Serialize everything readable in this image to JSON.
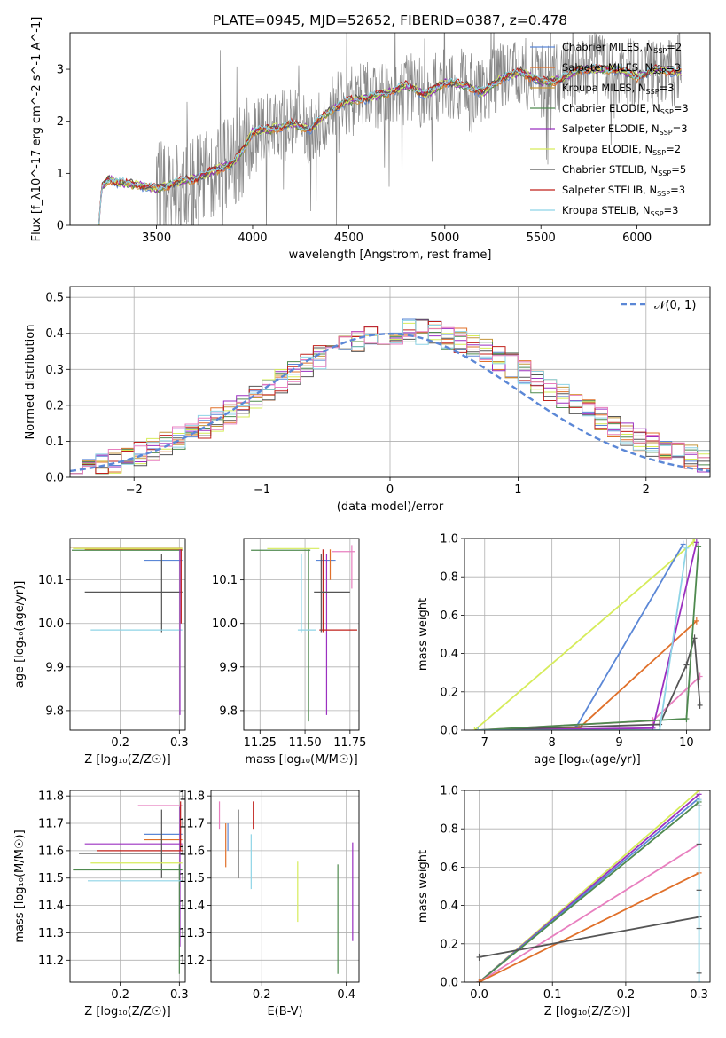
{
  "figure": {
    "title": "PLATE=0945, MJD=52652, FIBERID=0387, z=0.478"
  },
  "colors": {
    "Chabrier MILES": "#5b87d6",
    "Salpeter MILES": "#e0702a",
    "Kroupa MILES": "#c4963c",
    "Chabrier ELODIE": "#4f8a4f",
    "Salpeter ELODIE": "#9b30c0",
    "Kroupa ELODIE": "#d6ec5a",
    "Chabrier STELIB": "#555555",
    "Salpeter STELIB": "#c0201b",
    "Kroupa STELIB": "#8ed4e6",
    "pink": "#e87fbf",
    "data": "#888888",
    "gauss": "#5b87d6"
  },
  "chart_data": [
    {
      "id": "spectrum",
      "type": "line",
      "xlabel": "wavelength [Angstrom, rest frame]",
      "ylabel": "Flux [f_λ10^-17 erg cm^-2 s^-1 A^-1]",
      "xlim": [
        3050,
        6380
      ],
      "ylim": [
        0,
        3.7
      ],
      "xticks": [
        3500,
        4000,
        4500,
        5000,
        5500,
        6000
      ],
      "yticks": [
        0,
        1,
        2,
        3
      ],
      "legend_position": "top-right",
      "legend": [
        {
          "key": "Chabrier MILES",
          "label": "Chabrier MILES, N",
          "sub": "SSP",
          "tail": "=2"
        },
        {
          "key": "Salpeter MILES",
          "label": "Salpeter MILES, N",
          "sub": "SSP",
          "tail": "=3"
        },
        {
          "key": "Kroupa MILES",
          "label": "Kroupa MILES, N",
          "sub": "SSP",
          "tail": "=3"
        },
        {
          "key": "Chabrier ELODIE",
          "label": "Chabrier ELODIE, N",
          "sub": "SSP",
          "tail": "=3"
        },
        {
          "key": "Salpeter ELODIE",
          "label": "Salpeter ELODIE, N",
          "sub": "SSP",
          "tail": "=3"
        },
        {
          "key": "Kroupa ELODIE",
          "label": "Kroupa ELODIE, N",
          "sub": "SSP",
          "tail": "=2"
        },
        {
          "key": "Chabrier STELIB",
          "label": "Chabrier STELIB, N",
          "sub": "SSP",
          "tail": "=5"
        },
        {
          "key": "Salpeter STELIB",
          "label": "Salpeter STELIB, N",
          "sub": "SSP",
          "tail": "=3"
        },
        {
          "key": "Kroupa STELIB",
          "label": "Kroupa STELIB, N",
          "sub": "SSP",
          "tail": "=3"
        }
      ],
      "model_continuum": [
        [
          3200,
          0.02
        ],
        [
          3215,
          0.73
        ],
        [
          3250,
          0.9
        ],
        [
          3300,
          0.82
        ],
        [
          3400,
          0.78
        ],
        [
          3500,
          0.7
        ],
        [
          3600,
          0.82
        ],
        [
          3700,
          0.9
        ],
        [
          3800,
          1.05
        ],
        [
          3900,
          1.2
        ],
        [
          3950,
          1.45
        ],
        [
          4000,
          1.8
        ],
        [
          4100,
          1.85
        ],
        [
          4200,
          1.95
        ],
        [
          4300,
          1.85
        ],
        [
          4400,
          2.2
        ],
        [
          4500,
          2.4
        ],
        [
          4600,
          2.45
        ],
        [
          4700,
          2.55
        ],
        [
          4800,
          2.7
        ],
        [
          4900,
          2.5
        ],
        [
          5000,
          2.75
        ],
        [
          5100,
          2.7
        ],
        [
          5200,
          2.55
        ],
        [
          5300,
          2.85
        ],
        [
          5400,
          2.95
        ],
        [
          5500,
          2.75
        ],
        [
          5600,
          2.8
        ],
        [
          5700,
          3.0
        ],
        [
          5800,
          3.0
        ],
        [
          5900,
          3.0
        ],
        [
          6000,
          2.85
        ],
        [
          6100,
          3.0
        ],
        [
          6200,
          2.95
        ]
      ]
    },
    {
      "id": "residuals",
      "type": "histogram",
      "xlabel": "(data-model)/error",
      "ylabel": "Normed distribution",
      "xlim": [
        -2.5,
        2.5
      ],
      "ylim": [
        0,
        0.53
      ],
      "xticks": [
        -2,
        -1,
        0,
        1,
        2
      ],
      "yticks": [
        0.0,
        0.1,
        0.2,
        0.3,
        0.4,
        0.5
      ],
      "legend_position": "top-right",
      "legend": [
        {
          "key": "gauss",
          "label": "𝒩(0, 1)"
        }
      ],
      "bin_width": 0.1
    },
    {
      "id": "age_vs_Z",
      "type": "errorbar",
      "xlabel": "Z [log₁₀(Z/Z☉)]",
      "ylabel": "age  [log₁₀(age/yr)]",
      "xlim": [
        0.115,
        0.31
      ],
      "ylim": [
        9.755,
        10.195
      ],
      "xticks": [
        0.2,
        0.3
      ],
      "yticks": [
        9.8,
        9.9,
        10.0,
        10.1
      ]
    },
    {
      "id": "age_vs_mass",
      "type": "errorbar",
      "xlabel": "mass [log₁₀(M/M☉)]",
      "ylabel": "",
      "xlim": [
        11.16,
        11.8
      ],
      "ylim": [
        9.755,
        10.195
      ],
      "xticks": [
        11.25,
        11.5,
        11.75
      ],
      "yticks": [
        9.8,
        9.9,
        10.0,
        10.1
      ]
    },
    {
      "id": "weight_vs_age",
      "type": "line",
      "xlabel": "age  [log₁₀(age/yr)]",
      "ylabel": "mass weight",
      "xlim": [
        6.7,
        10.35
      ],
      "ylim": [
        0,
        1.0
      ],
      "xticks": [
        7,
        8,
        9,
        10
      ],
      "yticks": [
        0.0,
        0.2,
        0.4,
        0.6,
        0.8,
        1.0
      ]
    },
    {
      "id": "mass_vs_Z",
      "type": "errorbar",
      "xlabel": "Z [log₁₀(Z/Z☉)]",
      "ylabel": "mass [log₁₀(M/M☉)]",
      "xlim": [
        0.115,
        0.31
      ],
      "ylim": [
        11.12,
        11.82
      ],
      "xticks": [
        0.2,
        0.3
      ],
      "yticks": [
        11.2,
        11.3,
        11.4,
        11.5,
        11.6,
        11.7,
        11.8
      ]
    },
    {
      "id": "mass_vs_ebv",
      "type": "errorbar",
      "xlabel": "E(B-V)",
      "ylabel": "",
      "xlim": [
        0.08,
        0.43
      ],
      "ylim": [
        11.12,
        11.82
      ],
      "xticks": [
        0.2,
        0.4
      ],
      "yticks": [
        11.2,
        11.3,
        11.4,
        11.5,
        11.6,
        11.7,
        11.8
      ]
    },
    {
      "id": "weight_vs_Z",
      "type": "line",
      "xlabel": "Z [log₁₀(Z/Z☉)]",
      "ylabel": "mass weight",
      "xlim": [
        -0.02,
        0.315
      ],
      "ylim": [
        0,
        1.0
      ],
      "xticks": [
        0.0,
        0.1,
        0.2,
        0.3
      ],
      "yticks": [
        0.0,
        0.2,
        0.4,
        0.6,
        0.8,
        1.0
      ]
    }
  ]
}
